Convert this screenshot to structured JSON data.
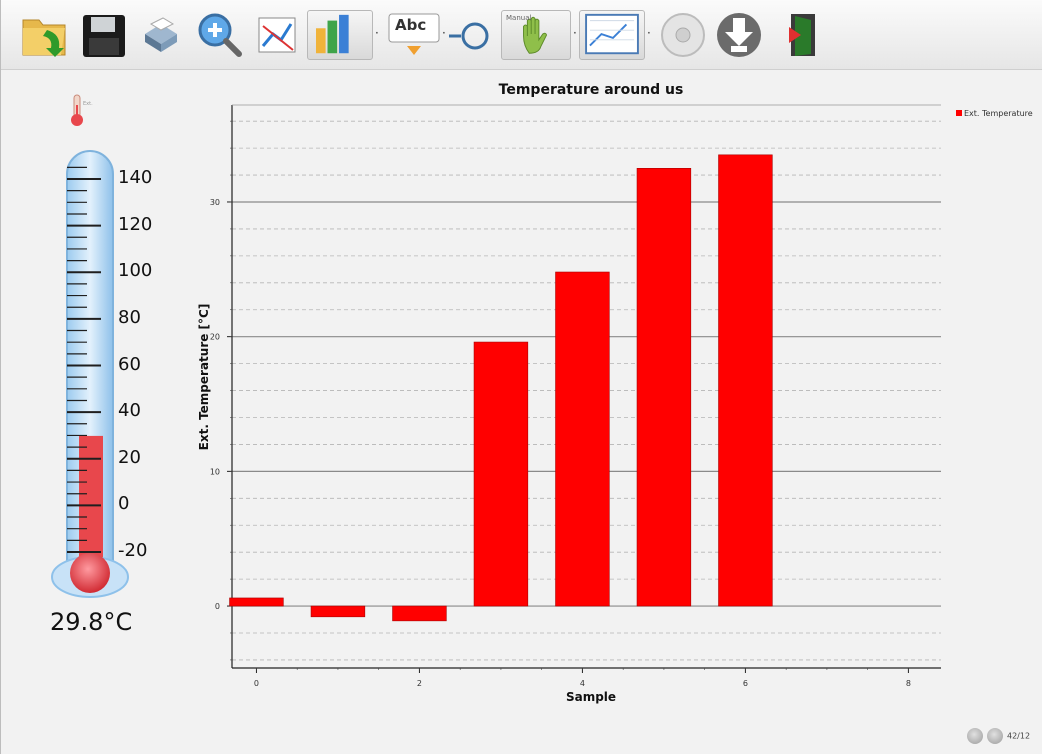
{
  "toolbar": {
    "items": [
      {
        "icon": "open-folder-icon"
      },
      {
        "icon": "save-icon"
      },
      {
        "icon": "print-icon"
      },
      {
        "icon": "zoom-icon"
      },
      {
        "icon": "line-chart-icon"
      },
      {
        "icon": "bar-chart-icon",
        "pressed": true,
        "has_dropdown": true
      },
      {
        "icon": "text-label-icon",
        "text": "Abc",
        "has_dropdown": true
      },
      {
        "icon": "marker-icon"
      },
      {
        "icon": "manual-hand-icon",
        "caption": "Manual",
        "has_dropdown": true
      },
      {
        "icon": "auto-scale-icon",
        "pressed": true,
        "has_dropdown": true
      },
      {
        "icon": "record-icon"
      },
      {
        "icon": "download-icon"
      },
      {
        "icon": "exit-icon"
      }
    ]
  },
  "thermometer": {
    "icon": "thermometer-icon",
    "icon_caption": "Ext.",
    "scale_labels": [
      "140",
      "120",
      "100",
      "80",
      "60",
      "40",
      "20",
      "0",
      "-20"
    ],
    "scale_values": [
      140,
      120,
      100,
      80,
      60,
      40,
      20,
      0,
      -20
    ],
    "value": 29.8,
    "reading": "29.8°C",
    "fill_color": "#e8474c",
    "tube_color": "#b9dcf7"
  },
  "chart_data": {
    "type": "bar",
    "title": "Temperature around us",
    "xlabel": "Sample",
    "ylabel": "Ext. Temperature [°C]",
    "x": [
      0,
      1,
      2,
      3,
      4,
      5,
      6
    ],
    "values": [
      0.6,
      -0.8,
      -1.1,
      19.6,
      24.8,
      32.5,
      33.5
    ],
    "xlim": [
      -0.3,
      8.4
    ],
    "ylim": [
      -4.6,
      37.2
    ],
    "xticks": [
      "0",
      "2",
      "4",
      "6",
      "8"
    ],
    "yticks": [
      "0",
      "10",
      "20",
      "30"
    ],
    "legend": {
      "position": "top-right",
      "label": "Ext. Temperature"
    },
    "grid": true,
    "bar_color": "#ff0000"
  },
  "status": {
    "text": "42/12"
  }
}
